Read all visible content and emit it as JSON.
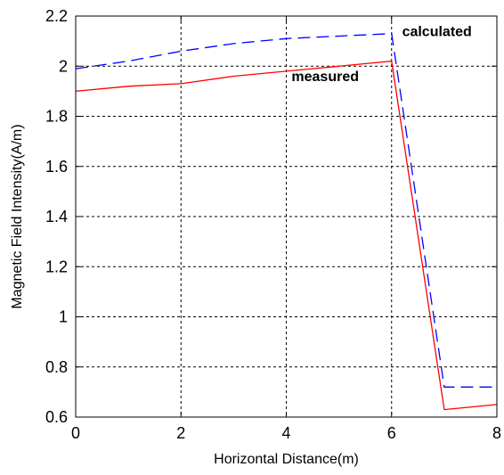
{
  "chart_data": {
    "type": "line",
    "title": "",
    "xlabel": "Horizontal Distance(m)",
    "ylabel": "Magnetic Field Intensity(A/m)",
    "xlim": [
      0,
      8
    ],
    "ylim": [
      0.6,
      2.2
    ],
    "xticks": [
      0,
      2,
      4,
      6,
      8
    ],
    "xtick_labels": [
      "0",
      "2",
      "4",
      "6",
      "8"
    ],
    "yticks": [
      0.6,
      0.8,
      1.0,
      1.2,
      1.4,
      1.6,
      1.8,
      2.0,
      2.2
    ],
    "ytick_labels": [
      "0.6",
      "0.8",
      "1",
      "1.2",
      "1.4",
      "1.6",
      "1.8",
      "2",
      "2.2"
    ],
    "grid": true,
    "series": [
      {
        "name": "calculated",
        "color": "#0000ff",
        "dash": "dashed",
        "points": [
          [
            0,
            1.99
          ],
          [
            1,
            2.02
          ],
          [
            2,
            2.06
          ],
          [
            3,
            2.09
          ],
          [
            4,
            2.11
          ],
          [
            5,
            2.12
          ],
          [
            6,
            2.13
          ],
          [
            7,
            0.72
          ],
          [
            8,
            0.72
          ]
        ]
      },
      {
        "name": "measured",
        "color": "#ff0000",
        "dash": "solid",
        "points": [
          [
            0,
            1.9
          ],
          [
            1,
            1.92
          ],
          [
            2,
            1.93
          ],
          [
            3,
            1.96
          ],
          [
            4,
            1.98
          ],
          [
            5,
            2.0
          ],
          [
            6,
            2.02
          ],
          [
            7,
            0.63
          ],
          [
            8,
            0.65
          ]
        ]
      }
    ],
    "annotations": [
      {
        "text": "calculated",
        "x": 6.2,
        "y": 2.12
      },
      {
        "text": "measured",
        "x": 4.1,
        "y": 1.94
      }
    ]
  }
}
